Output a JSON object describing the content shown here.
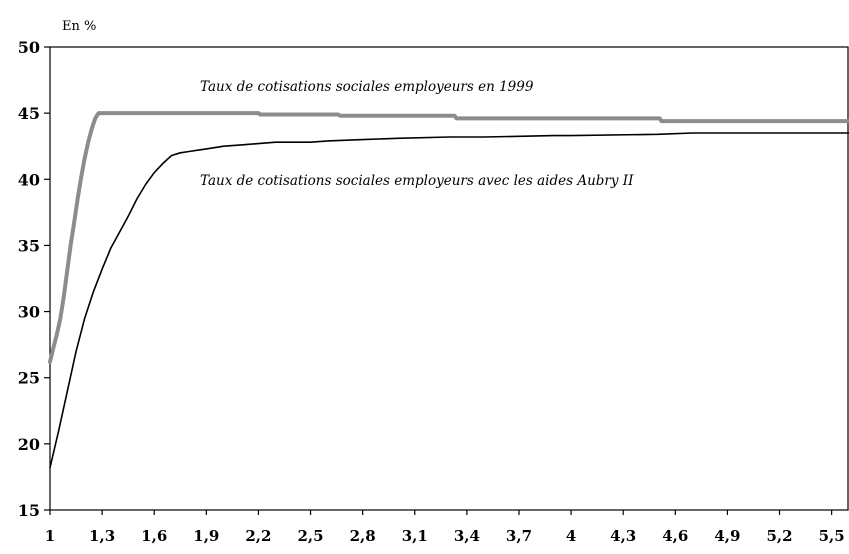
{
  "chart_data": {
    "type": "line",
    "ylabel": "En %",
    "ylim": [
      15,
      50
    ],
    "xlim": [
      1,
      5.6
    ],
    "yticks": [
      15,
      20,
      25,
      30,
      35,
      40,
      45,
      50
    ],
    "xtick_labels": [
      "1",
      "1,3",
      "1,6",
      "1,9",
      "2,2",
      "2,5",
      "2,8",
      "3,1",
      "3,4",
      "3,7",
      "4",
      "4,3",
      "4,6",
      "4,9",
      "5,2",
      "5,5"
    ],
    "grid": false,
    "colors": {
      "series_1999": "#8c8c8c",
      "series_aubry": "#000000"
    },
    "series": [
      {
        "key": "series_1999",
        "name": "Taux de cotisations sociales employeurs en 1999",
        "x": [
          1.0,
          1.02,
          1.04,
          1.06,
          1.08,
          1.1,
          1.12,
          1.14,
          1.16,
          1.18,
          1.2,
          1.22,
          1.24,
          1.26,
          1.28,
          1.3,
          1.32,
          1.34,
          1.4,
          1.6,
          1.8,
          2.0,
          2.2,
          2.21,
          2.66,
          2.67,
          3.33,
          3.34,
          4.51,
          4.52,
          5.6
        ],
        "y": [
          26.2,
          27.3,
          28.3,
          29.5,
          31.2,
          33.2,
          35.1,
          36.8,
          38.6,
          40.2,
          41.6,
          42.8,
          43.8,
          44.6,
          45.0,
          45.0,
          45.0,
          45.0,
          45.0,
          45.0,
          45.0,
          45.0,
          45.0,
          44.9,
          44.9,
          44.8,
          44.8,
          44.6,
          44.6,
          44.4,
          44.4
        ]
      },
      {
        "key": "series_aubry",
        "name": "Taux de cotisations sociales employeurs avec les aides Aubry II",
        "x": [
          1.0,
          1.05,
          1.1,
          1.15,
          1.2,
          1.25,
          1.3,
          1.35,
          1.4,
          1.45,
          1.5,
          1.55,
          1.6,
          1.65,
          1.7,
          1.75,
          1.8,
          1.85,
          1.9,
          2.0,
          2.1,
          2.2,
          2.3,
          2.5,
          2.6,
          2.8,
          3.0,
          3.3,
          3.5,
          3.9,
          4.0,
          4.5,
          4.7,
          5.0,
          5.6
        ],
        "y": [
          18.2,
          21.0,
          24.0,
          27.0,
          29.5,
          31.5,
          33.2,
          34.8,
          36.0,
          37.2,
          38.5,
          39.6,
          40.5,
          41.2,
          41.8,
          42.0,
          42.1,
          42.2,
          42.3,
          42.5,
          42.6,
          42.7,
          42.8,
          42.8,
          42.9,
          43.0,
          43.1,
          43.2,
          43.2,
          43.3,
          43.3,
          43.4,
          43.5,
          43.5,
          43.5
        ]
      }
    ]
  }
}
